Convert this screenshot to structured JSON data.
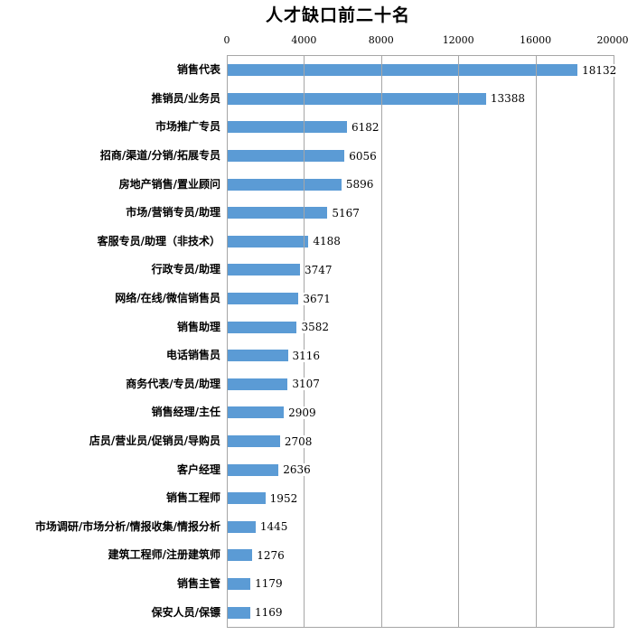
{
  "title": "人才缺口前二十名",
  "colors": {
    "bar": "#5B9BD5",
    "gridline": "#A6A6A6",
    "plot_border": "#A6A6A6",
    "text": "#000000",
    "background": "#FFFFFF"
  },
  "chart_data": {
    "type": "bar",
    "orientation": "horizontal",
    "title": "人才缺口前二十名",
    "categories": [
      "销售代表",
      "推销员/业务员",
      "市场推广专员",
      "招商/渠道/分销/拓展专员",
      "房地产销售/置业顾问",
      "市场/营销专员/助理",
      "客服专员/助理（非技术）",
      "行政专员/助理",
      "网络/在线/微信销售员",
      "销售助理",
      "电话销售员",
      "商务代表/专员/助理",
      "销售经理/主任",
      "店员/营业员/促销员/导购员",
      "客户经理",
      "销售工程师",
      "市场调研/市场分析/情报收集/情报分析",
      "建筑工程师/注册建筑师",
      "销售主管",
      "保安人员/保镖"
    ],
    "values": [
      18132,
      13388,
      6182,
      6056,
      5896,
      5167,
      4188,
      3747,
      3671,
      3582,
      3116,
      3107,
      2909,
      2708,
      2636,
      1952,
      1445,
      1276,
      1179,
      1169
    ],
    "xlabel": "",
    "ylabel": "",
    "xlim": [
      0,
      20000
    ],
    "x_ticks": [
      "0",
      "4000",
      "8000",
      "12000",
      "16000",
      "20000"
    ],
    "x_tick_values": [
      0,
      4000,
      8000,
      12000,
      16000,
      20000
    ],
    "grid": true,
    "value_labels": true,
    "legend": false
  }
}
